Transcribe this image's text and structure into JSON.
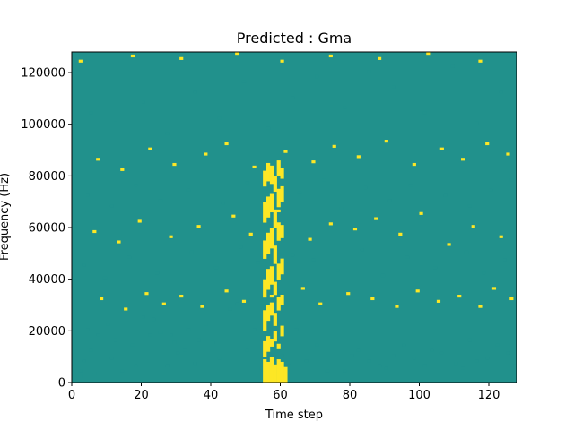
{
  "chart_data": {
    "type": "heatmap",
    "title": "Predicted : Gma",
    "xlabel": "Time step",
    "ylabel": "Frequency (Hz)",
    "xlim": [
      0,
      128
    ],
    "ylim": [
      0,
      128000
    ],
    "xticks": [
      0,
      20,
      40,
      60,
      80,
      100,
      120
    ],
    "yticks": [
      0,
      20000,
      40000,
      60000,
      80000,
      100000,
      120000
    ],
    "xtick_labels": [
      "0",
      "20",
      "40",
      "60",
      "80",
      "100",
      "120"
    ],
    "ytick_labels": [
      "0",
      "20000",
      "40000",
      "60000",
      "80000",
      "100000",
      "120000"
    ],
    "colormap": "viridis",
    "levels": {
      "low": 0,
      "mid": 1,
      "high": 2
    },
    "level_colors": {
      "low": "#440154",
      "mid": "#21918c",
      "high": "#fde725"
    },
    "background_level": 1,
    "grid": false,
    "n_time_steps": 128,
    "n_freq_bins": 128,
    "freq_bin_hz": 1000,
    "cells": [
      [
        2,
        2,
        1
      ],
      [
        2,
        4,
        1
      ],
      [
        3,
        8,
        1
      ],
      [
        4,
        20,
        1
      ],
      [
        5,
        12,
        1
      ],
      [
        6,
        3,
        1
      ],
      [
        7,
        18,
        1
      ],
      [
        10,
        22,
        1
      ],
      [
        11,
        9,
        1
      ],
      [
        12,
        16,
        1
      ],
      [
        14,
        4,
        1
      ],
      [
        17,
        14,
        1
      ],
      [
        18,
        6,
        1
      ],
      [
        20,
        25,
        1
      ],
      [
        22,
        18,
        1
      ],
      [
        23,
        24,
        1
      ],
      [
        25,
        19,
        1
      ],
      [
        27,
        6,
        1
      ],
      [
        28,
        18,
        1
      ],
      [
        29,
        15,
        1
      ],
      [
        30,
        11,
        1
      ],
      [
        32,
        12,
        1
      ],
      [
        33,
        20,
        1
      ],
      [
        35,
        7,
        1
      ],
      [
        36,
        16,
        1
      ],
      [
        38,
        22,
        1
      ],
      [
        40,
        15,
        1
      ],
      [
        42,
        9,
        1
      ],
      [
        45,
        28,
        1
      ],
      [
        47,
        30,
        1
      ],
      [
        50,
        12,
        1
      ],
      [
        52,
        20,
        1
      ],
      [
        54,
        5,
        1
      ],
      [
        55,
        3,
        1
      ],
      [
        60,
        10,
        1
      ],
      [
        62,
        6,
        1
      ],
      [
        64,
        20,
        1
      ],
      [
        67,
        8,
        1
      ],
      [
        70,
        14,
        1
      ],
      [
        73,
        4,
        1
      ],
      [
        78,
        4,
        1
      ],
      [
        80,
        10,
        1
      ],
      [
        82,
        12,
        1
      ],
      [
        85,
        8,
        1
      ],
      [
        88,
        6,
        1
      ],
      [
        90,
        5,
        1
      ],
      [
        92,
        10,
        1
      ],
      [
        95,
        14,
        1
      ],
      [
        98,
        9,
        1
      ],
      [
        101,
        6,
        1
      ],
      [
        103,
        12,
        1
      ],
      [
        106,
        11,
        1
      ],
      [
        110,
        7,
        1
      ],
      [
        112,
        5,
        1
      ],
      [
        114,
        16,
        1
      ],
      [
        116,
        8,
        1
      ],
      [
        119,
        9,
        1
      ],
      [
        122,
        14,
        1
      ],
      [
        125,
        11,
        1
      ],
      [
        127,
        6,
        1
      ],
      [
        8,
        32,
        2
      ],
      [
        15,
        28,
        2
      ],
      [
        21,
        34,
        2
      ],
      [
        26,
        30,
        2
      ],
      [
        31,
        33,
        2
      ],
      [
        37,
        29,
        2
      ],
      [
        44,
        35,
        2
      ],
      [
        49,
        31,
        2
      ],
      [
        57,
        33,
        2
      ],
      [
        66,
        36,
        2
      ],
      [
        71,
        30,
        2
      ],
      [
        79,
        34,
        2
      ],
      [
        86,
        32,
        2
      ],
      [
        93,
        29,
        2
      ],
      [
        99,
        35,
        2
      ],
      [
        105,
        31,
        2
      ],
      [
        111,
        33,
        2
      ],
      [
        117,
        29,
        2
      ],
      [
        121,
        36,
        2
      ],
      [
        126,
        32,
        2
      ],
      [
        3,
        45,
        1
      ],
      [
        9,
        40,
        1
      ],
      [
        16,
        48,
        1
      ],
      [
        24,
        42,
        1
      ],
      [
        34,
        50,
        1
      ],
      [
        41,
        44,
        1
      ],
      [
        48,
        52,
        1
      ],
      [
        53,
        46,
        1
      ],
      [
        63,
        49,
        1
      ],
      [
        69,
        47,
        1
      ],
      [
        76,
        43,
        1
      ],
      [
        83,
        51,
        1
      ],
      [
        89,
        41,
        1
      ],
      [
        96,
        48,
        1
      ],
      [
        104,
        44,
        1
      ],
      [
        113,
        50,
        1
      ],
      [
        118,
        42,
        1
      ],
      [
        124,
        47,
        1
      ],
      [
        6,
        58,
        2
      ],
      [
        13,
        54,
        2
      ],
      [
        19,
        62,
        2
      ],
      [
        28,
        56,
        2
      ],
      [
        36,
        60,
        2
      ],
      [
        46,
        64,
        2
      ],
      [
        51,
        57,
        2
      ],
      [
        59,
        66,
        2
      ],
      [
        68,
        55,
        2
      ],
      [
        74,
        61,
        2
      ],
      [
        81,
        59,
        2
      ],
      [
        87,
        63,
        2
      ],
      [
        94,
        57,
        2
      ],
      [
        100,
        65,
        2
      ],
      [
        108,
        53,
        2
      ],
      [
        115,
        60,
        2
      ],
      [
        123,
        56,
        2
      ],
      [
        4,
        72,
        1
      ],
      [
        11,
        68,
        1
      ],
      [
        18,
        76,
        1
      ],
      [
        25,
        70,
        1
      ],
      [
        33,
        74,
        1
      ],
      [
        43,
        69,
        1
      ],
      [
        50,
        77,
        1
      ],
      [
        58,
        71,
        1
      ],
      [
        65,
        73,
        1
      ],
      [
        72,
        78,
        1
      ],
      [
        77,
        67,
        1
      ],
      [
        84,
        75,
        1
      ],
      [
        91,
        70,
        1
      ],
      [
        97,
        76,
        1
      ],
      [
        107,
        72,
        1
      ],
      [
        114,
        68,
        1
      ],
      [
        120,
        74,
        1
      ],
      [
        126,
        78,
        1
      ],
      [
        7,
        86,
        2
      ],
      [
        14,
        82,
        2
      ],
      [
        22,
        90,
        2
      ],
      [
        29,
        84,
        2
      ],
      [
        38,
        88,
        2
      ],
      [
        44,
        92,
        2
      ],
      [
        52,
        83,
        2
      ],
      [
        61,
        89,
        2
      ],
      [
        69,
        85,
        2
      ],
      [
        75,
        91,
        2
      ],
      [
        82,
        87,
        2
      ],
      [
        90,
        93,
        2
      ],
      [
        98,
        84,
        2
      ],
      [
        106,
        90,
        2
      ],
      [
        112,
        86,
        2
      ],
      [
        119,
        92,
        2
      ],
      [
        125,
        88,
        2
      ],
      [
        5,
        104,
        1
      ],
      [
        12,
        100,
        1
      ],
      [
        20,
        108,
        1
      ],
      [
        27,
        96,
        1
      ],
      [
        35,
        112,
        1
      ],
      [
        42,
        102,
        1
      ],
      [
        49,
        116,
        1
      ],
      [
        56,
        98,
        1
      ],
      [
        63,
        110,
        1
      ],
      [
        70,
        118,
        1
      ],
      [
        78,
        106,
        1
      ],
      [
        85,
        120,
        1
      ],
      [
        92,
        114,
        1
      ],
      [
        101,
        104,
        1
      ],
      [
        109,
        122,
        1
      ],
      [
        116,
        100,
        1
      ],
      [
        123,
        112,
        1
      ],
      [
        2,
        124,
        2
      ],
      [
        17,
        126,
        2
      ],
      [
        31,
        125,
        2
      ],
      [
        47,
        127,
        2
      ],
      [
        60,
        124,
        2
      ],
      [
        74,
        126,
        2
      ],
      [
        88,
        125,
        2
      ],
      [
        102,
        127,
        2
      ],
      [
        117,
        124,
        2
      ]
    ],
    "dense_band": {
      "x_range": [
        54,
        62
      ],
      "y_range": [
        0,
        86
      ],
      "fill": [
        [
          55,
          0,
          9
        ],
        [
          56,
          0,
          8
        ],
        [
          57,
          0,
          10
        ],
        [
          58,
          0,
          7
        ],
        [
          59,
          0,
          9
        ],
        [
          60,
          0,
          8
        ],
        [
          61,
          0,
          6
        ],
        [
          55,
          10,
          16
        ],
        [
          56,
          12,
          18
        ],
        [
          57,
          14,
          17
        ],
        [
          58,
          16,
          20
        ],
        [
          59,
          13,
          15
        ],
        [
          60,
          18,
          22
        ],
        [
          55,
          20,
          28
        ],
        [
          56,
          24,
          30
        ],
        [
          57,
          26,
          31
        ],
        [
          58,
          22,
          27
        ],
        [
          59,
          28,
          33
        ],
        [
          60,
          30,
          34
        ],
        [
          55,
          33,
          40
        ],
        [
          56,
          36,
          44
        ],
        [
          57,
          38,
          45
        ],
        [
          58,
          34,
          39
        ],
        [
          59,
          40,
          46
        ],
        [
          60,
          42,
          48
        ],
        [
          55,
          48,
          55
        ],
        [
          56,
          50,
          58
        ],
        [
          57,
          52,
          60
        ],
        [
          58,
          46,
          53
        ],
        [
          59,
          55,
          62
        ],
        [
          60,
          56,
          61
        ],
        [
          55,
          62,
          70
        ],
        [
          56,
          64,
          72
        ],
        [
          57,
          66,
          73
        ],
        [
          58,
          60,
          67
        ],
        [
          59,
          68,
          75
        ],
        [
          60,
          70,
          76
        ],
        [
          55,
          76,
          82
        ],
        [
          56,
          78,
          85
        ],
        [
          57,
          77,
          84
        ],
        [
          58,
          74,
          80
        ],
        [
          59,
          80,
          86
        ],
        [
          60,
          79,
          83
        ]
      ]
    }
  }
}
